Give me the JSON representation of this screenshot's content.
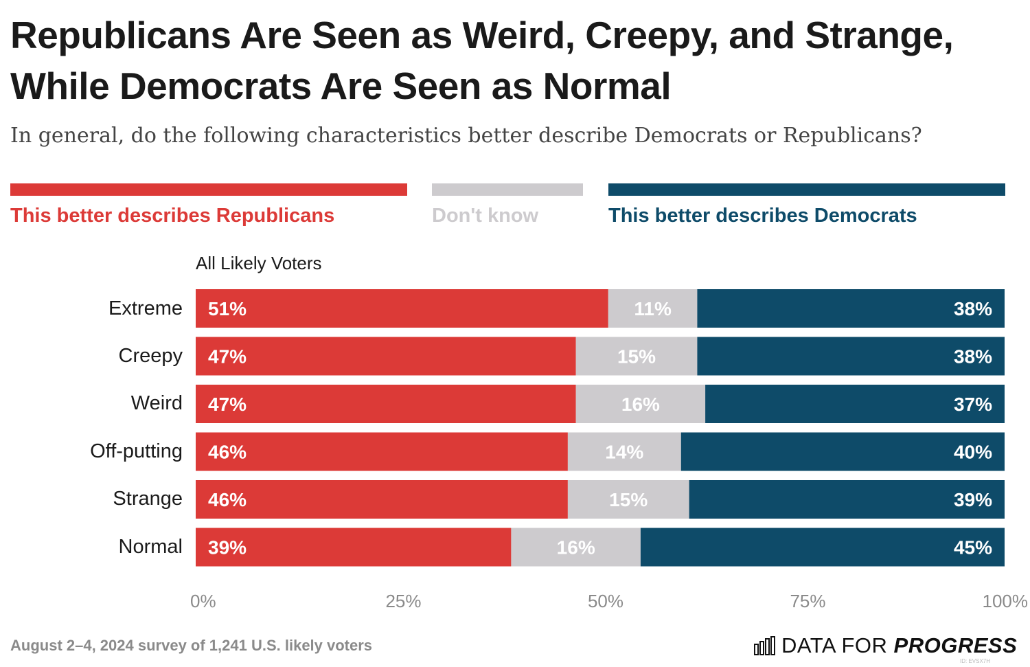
{
  "title": "Republicans Are Seen as Weird, Creepy, and Strange, While Democrats Are Seen as Normal",
  "subtitle": "In general, do the following characteristics better describe Democrats or Republicans?",
  "legend": [
    {
      "label": "This better describes Republicans",
      "color": "#dc3a37"
    },
    {
      "label": "Don't know",
      "color": "#cdcbce"
    },
    {
      "label": "This better describes Democrats",
      "color": "#0e4b69"
    }
  ],
  "group_label": "All Likely Voters",
  "footnote": "August 2–4, 2024 survey of 1,241 U.S. likely voters",
  "logo": {
    "text_plain": "DATA FOR",
    "text_bold": "PROGRESS"
  },
  "chart_id": "ID: EVSX7H",
  "chart_data": {
    "type": "bar",
    "orientation": "horizontal",
    "stacked": true,
    "categories": [
      "Extreme",
      "Creepy",
      "Weird",
      "Off-putting",
      "Strange",
      "Normal"
    ],
    "series": [
      {
        "name": "This better describes Republicans",
        "color": "#dc3a37",
        "label_color": "#ffffff",
        "values": [
          51,
          47,
          47,
          46,
          46,
          39
        ]
      },
      {
        "name": "Don't know",
        "color": "#cdcbce",
        "label_color": "#ffffff",
        "values": [
          11,
          15,
          16,
          14,
          15,
          16
        ]
      },
      {
        "name": "This better describes Democrats",
        "color": "#0e4b69",
        "label_color": "#ffffff",
        "values": [
          38,
          38,
          37,
          40,
          39,
          45
        ]
      }
    ],
    "value_labels": [
      [
        "51%",
        "11%",
        "38%"
      ],
      [
        "47%",
        "15%",
        "38%"
      ],
      [
        "47%",
        "16%",
        "37%"
      ],
      [
        "46%",
        "14%",
        "40%"
      ],
      [
        "46%",
        "15%",
        "39%"
      ],
      [
        "39%",
        "16%",
        "45%"
      ]
    ],
    "xlim": [
      0,
      100
    ],
    "xticks": [
      0,
      25,
      50,
      75,
      100
    ],
    "xtick_labels": [
      "0%",
      "25%",
      "50%",
      "75%",
      "100%"
    ],
    "xlabel": "",
    "ylabel": "",
    "grid": false
  }
}
